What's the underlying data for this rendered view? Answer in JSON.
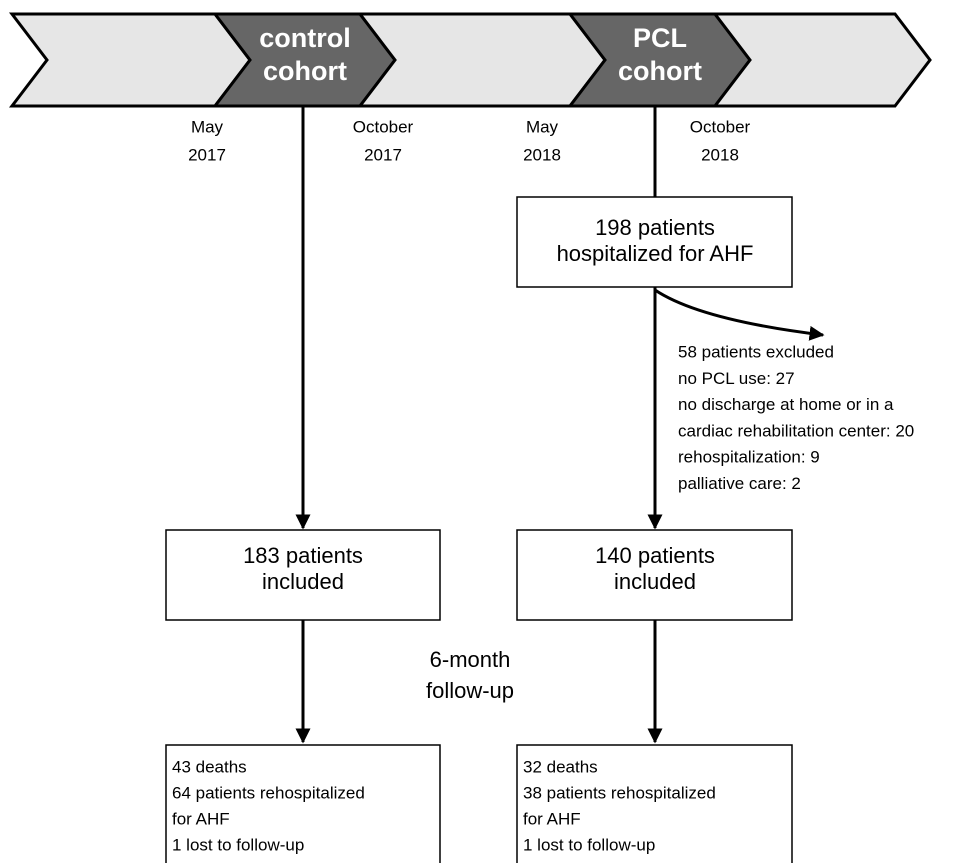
{
  "timeline": {
    "cohorts": [
      {
        "lines": [
          "control",
          "cohort"
        ]
      },
      {
        "lines": [
          "PCL",
          "cohort"
        ]
      }
    ],
    "dates": [
      {
        "lines": [
          "May",
          "2017"
        ]
      },
      {
        "lines": [
          "October",
          "2017"
        ]
      },
      {
        "lines": [
          "May",
          "2018"
        ]
      },
      {
        "lines": [
          "October",
          "2018"
        ]
      }
    ]
  },
  "boxes": {
    "hospitalized": [
      "198 patients",
      "hospitalized for AHF"
    ],
    "control_included": [
      "183 patients",
      "included"
    ],
    "pcl_included": [
      "140 patients",
      "included"
    ],
    "control_outcomes": [
      "43 deaths",
      "64 patients rehospitalized",
      "for AHF",
      "1 lost to follow-up"
    ],
    "pcl_outcomes": [
      "32 deaths",
      "38 patients rehospitalized",
      "for AHF",
      "1 lost to follow-up"
    ]
  },
  "excluded": [
    "58 patients excluded",
    "no PCL use: 27",
    "no discharge at home or in a",
    "cardiac rehabilitation center: 20",
    "rehospitalization: 9",
    "palliative care: 2"
  ],
  "follow_up": [
    "6-month",
    "follow-up"
  ]
}
